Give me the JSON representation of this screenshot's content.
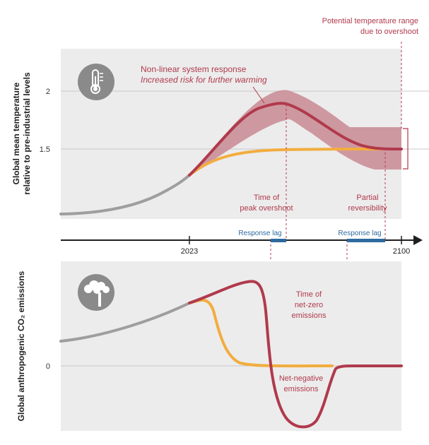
{
  "colors": {
    "panel_bg": "#ececec",
    "gray_line": "#9e9e9e",
    "red": "#b03a4c",
    "red_band": "#c98a93",
    "orange": "#f2ad3f",
    "blue": "#2f6a9f",
    "icon_bg": "#8a8a8a",
    "axis": "#1f1f1f",
    "label_red": "#b03a4c"
  },
  "top_panel": {
    "y_axis_label_line1": "Global mean temperature",
    "y_axis_label_line2": "relative to pre-industrial levels",
    "tick_2": "2",
    "tick_15": "1.5",
    "icon": "thermometer-icon",
    "annotation_nonlinear_line1": "Non-linear system response",
    "annotation_nonlinear_line2": "Increased risk for further warming",
    "annotation_range_line1": "Potential temperature range",
    "annotation_range_line2": "due to overshoot",
    "annotation_peak_line1": "Time of",
    "annotation_peak_line2": "peak overshoot",
    "annotation_partial_line1": "Partial",
    "annotation_partial_line2": "reversibility"
  },
  "timeline": {
    "year_start": "2023",
    "year_end": "2100",
    "response_lag_1": "Response lag",
    "response_lag_2": "Response lag"
  },
  "bottom_panel": {
    "y_axis_label": "Global anthropogenic CO₂ emissions",
    "tick_0": "0",
    "icon": "factory-smoke-icon",
    "annotation_netzero_line1": "Time of",
    "annotation_netzero_line2": "net-zero",
    "annotation_netzero_line3": "emissions",
    "annotation_netneg_line1": "Net-negative",
    "annotation_netneg_line2": "emissions"
  }
}
